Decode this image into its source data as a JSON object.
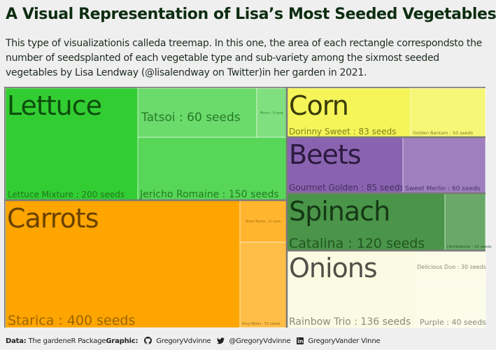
{
  "title": "A Visual Representation of Lisa’s Most Seeded Vegetables",
  "subtitle": "This type of visualizationis calleda treemap. In this one, the area of each rectangle correspondsto the number of seedsplanted of each vegetable type and sub-variety among the sixmost seeded vegetables by Lisa Lendway (@lisalendway on Twitter)in her garden in 2021.",
  "caption": {
    "data_label": "Data:",
    "data_value": "The gardeneR Package",
    "graphic_label": "Graphic:",
    "github_handle": "GregoryVdvinne",
    "twitter_handle": "@GregoryVdvinne",
    "linkedin_name": "GregoryVander Vinne",
    "icons": [
      "github-icon",
      "twitter-icon",
      "linkedin-icon"
    ]
  },
  "chart_data": {
    "type": "treemap",
    "unit": "seeds",
    "groups": [
      {
        "name": "Carrots",
        "color": "#ffa500",
        "varieties": [
          {
            "label": "Starica : 400 seeds",
            "name": "Starica",
            "value": 400
          },
          {
            "label": "Bolero Nantes : 25 seeds",
            "name": "Bolero Nantes",
            "value": 25
          },
          {
            "label": "King Midas : 55 seeds",
            "name": "King Midas",
            "value": 55
          }
        ]
      },
      {
        "name": "Lettuce",
        "color": "#32cd32",
        "varieties": [
          {
            "label": "Lettuce Mixture : 200 seeds",
            "name": "Lettuce Mixture",
            "value": 200
          },
          {
            "label": "Jericho Romaine : 150 seeds",
            "name": "Jericho Romaine",
            "value": 150
          },
          {
            "label": "Tatsoi : 60 seeds",
            "name": "Tatsoi",
            "value": 60
          },
          {
            "label": "Mizuna : 9 seeds",
            "name": "Mizuna",
            "value": 9
          }
        ]
      },
      {
        "name": "Corn",
        "color": "#f5f55a",
        "varieties": [
          {
            "label": "Dorinny Sweet : 83 seeds",
            "name": "Dorinny Sweet",
            "value": 83
          },
          {
            "label": "Golden Bantam : 50 seeds",
            "name": "Golden Bantam",
            "value": 50
          }
        ]
      },
      {
        "name": "Beets",
        "color": "#8a63b0",
        "varieties": [
          {
            "label": "Gourmet Golden : 85 seeds",
            "name": "Gourmet Golden",
            "value": 85
          },
          {
            "label": "Sweet Merlin : 60 seeds",
            "name": "Sweet Merlin",
            "value": 60
          }
        ]
      },
      {
        "name": "Spinach",
        "color": "#4a9549",
        "varieties": [
          {
            "label": "Catalina : 120 seeds",
            "name": "Catalina",
            "value": 120
          },
          {
            "label": "Hembidome : 30 seeds",
            "name": "Hembidome",
            "value": 30
          }
        ]
      },
      {
        "name": "Onions",
        "color": "#fbfbe3",
        "varieties": [
          {
            "label": "Rainbow Trio : 136 seeds",
            "name": "Rainbow Trio",
            "value": 136
          },
          {
            "label": "Delicious Duo : 30 seeds",
            "name": "Delicious Duo",
            "value": 30
          },
          {
            "label": "Purple : 40 seeds",
            "name": "Purple",
            "value": 40
          }
        ]
      }
    ]
  }
}
